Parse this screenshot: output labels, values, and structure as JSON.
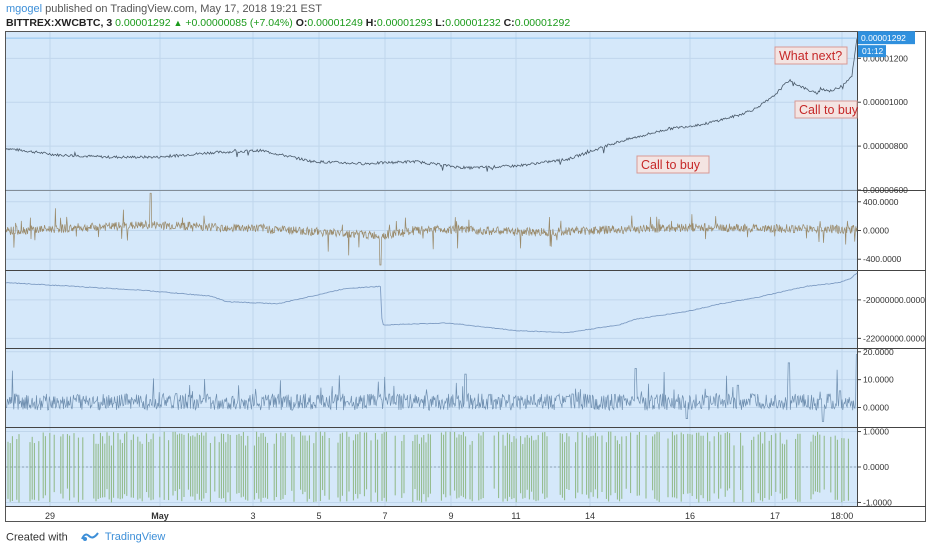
{
  "header": {
    "author": "mgogel",
    "published_text": "published on TradingView.com, May 17, 2018 19:21 EST",
    "symbol": "BITTREX:XWCBTC, 3",
    "last": "0.00001292",
    "change": "+0.00000085 (+7.04%)",
    "open_label": "O:",
    "open": "0.00001249",
    "high_label": "H:",
    "high": "0.00001293",
    "low_label": "L:",
    "low": "0.00001232",
    "close_label": "C:",
    "close": "0.00001292"
  },
  "colors": {
    "pane_bg": "#d5e8fa",
    "grid": "#c0d6ec",
    "price_line": "#4a5a6a",
    "osc_line": "#9a8a6a",
    "obv_line": "#7f9dc4",
    "cmf_line": "#6f8fb0",
    "bars": "#8fb884",
    "accent": "#2f90de",
    "annot_text": "#c62828"
  },
  "footer": {
    "created_with": "Created with",
    "brand": "TradingView"
  },
  "chart_data": [
    {
      "type": "line",
      "pane": "price",
      "ylim": [
        6e-06,
        1.32e-05
      ],
      "y_ticks": [
        "0.00000600",
        "0.00000800",
        "0.00001000",
        "0.00001200"
      ],
      "last_price_label": "0.00001292",
      "countdown_label": "01:12",
      "x_ticks": [
        "29",
        "May",
        "3",
        "5",
        "7",
        "9",
        "11",
        "14",
        "16",
        "17",
        "18:00"
      ],
      "x": [
        0,
        3,
        6,
        9,
        12,
        15,
        18,
        21,
        24,
        27,
        30,
        33,
        36,
        39,
        40,
        41,
        42,
        43,
        44,
        45,
        46,
        47,
        47.6,
        48,
        48.5,
        49,
        49.3,
        49.7,
        50
      ],
      "values": [
        7.9e-06,
        7.6e-06,
        7.5e-06,
        7.5e-06,
        7.7e-06,
        7.8e-06,
        7.3e-06,
        7.2e-06,
        7.3e-06,
        7e-06,
        7.1e-06,
        7.4e-06,
        8.2e-06,
        8.8e-06,
        8.9e-06,
        9e-06,
        9.2e-06,
        9.4e-06,
        9.7e-06,
        1.02e-05,
        1.1e-05,
        1.06e-05,
        1.04e-05,
        1.06e-05,
        1.05e-05,
        1.07e-05,
        1.09e-05,
        1.12e-05,
        1.29e-05
      ],
      "annotations": [
        "What next?",
        "Call to buy",
        "Call to buy"
      ]
    },
    {
      "type": "line",
      "pane": "oscillator_1",
      "ylim": [
        -550,
        550
      ],
      "y_ticks": [
        "400.0000",
        "0.0000",
        "-400.0000"
      ],
      "x": [
        0,
        8.5,
        15,
        22,
        25,
        31,
        40,
        50
      ],
      "values": [
        -30,
        520,
        200,
        -480,
        150,
        -160,
        290,
        100
      ]
    },
    {
      "type": "line",
      "pane": "obv",
      "ylim": [
        -22500000,
        -18500000
      ],
      "y_ticks": [
        "-20000000.0000",
        "-22000000.0000"
      ],
      "x": [
        0,
        4,
        8,
        12,
        13,
        16,
        20,
        22,
        22.1,
        26,
        30,
        33,
        36,
        37,
        40,
        42,
        44,
        46,
        47,
        48,
        49,
        49.6,
        50
      ],
      "values": [
        -19100000,
        -19300000,
        -19500000,
        -19800000,
        -20100000,
        -20200000,
        -19400000,
        -19300000,
        -21300000,
        -21200000,
        -21600000,
        -21700000,
        -21300000,
        -21000000,
        -20600000,
        -20200000,
        -19900000,
        -19500000,
        -19300000,
        -19200000,
        -19100000,
        -18900000,
        -18600000
      ]
    },
    {
      "type": "line",
      "pane": "oscillator_2",
      "ylim": [
        -7,
        21
      ],
      "y_ticks": [
        "20.0000",
        "10.0000",
        "0.0000"
      ],
      "x": [
        0,
        10,
        20,
        27,
        33,
        37,
        40,
        43,
        46,
        48,
        49,
        50
      ],
      "values": [
        0,
        5,
        2,
        12,
        4,
        14,
        -4,
        8,
        16,
        -5,
        6,
        19
      ]
    },
    {
      "type": "bar",
      "pane": "oscillator_3",
      "ylim": [
        -1.1,
        1.1
      ],
      "y_ticks": [
        "1.0000",
        "0.0000",
        "-1.0000"
      ],
      "values_range": [
        -1,
        1
      ]
    }
  ]
}
